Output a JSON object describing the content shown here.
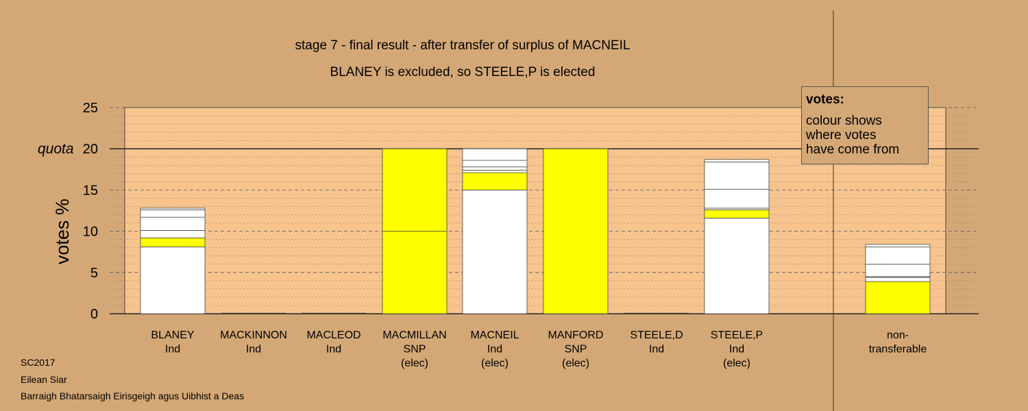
{
  "chart_data": {
    "type": "bar",
    "stacked": true,
    "title": "stage 7 - final result - after transfer of surplus of MACNEIL",
    "subtitle": "BLANEY is excluded, so STEELE,P is elected",
    "ylabel": "votes %",
    "ylim": [
      0,
      25
    ],
    "yticks": [
      0,
      5,
      10,
      15,
      20,
      25
    ],
    "quota": 20,
    "quota_label": "quota",
    "grid": true,
    "legend_placement": "top-right",
    "colors": {
      "background": "#d4a876",
      "plot_area": "#f7c48e",
      "yellow": "#ffff00",
      "white": "#ffffff",
      "outline": "#444444"
    },
    "categories": [
      {
        "lines": [
          "BLANEY",
          "Ind"
        ],
        "segments": [
          {
            "value": 8.1,
            "color": "#ffffff"
          },
          {
            "value": 1.1,
            "color": "#ffff00"
          },
          {
            "value": 0.9,
            "color": "#ffffff"
          },
          {
            "value": 1.6,
            "color": "#ffffff"
          },
          {
            "value": 0.9,
            "color": "#ffffff"
          },
          {
            "value": 0.2,
            "color": "#ffffff"
          }
        ]
      },
      {
        "lines": [
          "MACKINNON",
          "Ind"
        ],
        "segments": []
      },
      {
        "lines": [
          "MACLEOD",
          "Ind"
        ],
        "segments": []
      },
      {
        "lines": [
          "MACMILLAN",
          "SNP",
          "(elec)"
        ],
        "segments": [
          {
            "value": 10.0,
            "color": "#ffff00"
          },
          {
            "value": 10.0,
            "color": "#ffff00"
          }
        ]
      },
      {
        "lines": [
          "MACNEIL",
          "Ind",
          "(elec)"
        ],
        "segments": [
          {
            "value": 15.0,
            "color": "#ffffff"
          },
          {
            "value": 2.1,
            "color": "#ffff00"
          },
          {
            "value": 0.3,
            "color": "#ffffff"
          },
          {
            "value": 0.4,
            "color": "#ffffff"
          },
          {
            "value": 0.8,
            "color": "#ffffff"
          },
          {
            "value": 1.4,
            "color": "#ffffff"
          }
        ]
      },
      {
        "lines": [
          "MANFORD",
          "SNP",
          "(elec)"
        ],
        "segments": [
          {
            "value": 20.0,
            "color": "#ffff00"
          }
        ]
      },
      {
        "lines": [
          "STEELE,D",
          "Ind"
        ],
        "segments": []
      },
      {
        "lines": [
          "STEELE,P",
          "Ind",
          "(elec)"
        ],
        "segments": [
          {
            "value": 11.6,
            "color": "#ffffff"
          },
          {
            "value": 1.0,
            "color": "#ffff00"
          },
          {
            "value": 0.2,
            "color": "#ffffff"
          },
          {
            "value": 2.3,
            "color": "#ffffff"
          },
          {
            "value": 3.3,
            "color": "#ffffff"
          },
          {
            "value": 0.3,
            "color": "#ffffff"
          }
        ]
      },
      {
        "lines": [
          "non-",
          "transferable"
        ],
        "segments": [
          {
            "value": 3.9,
            "color": "#ffff00"
          },
          {
            "value": 0.5,
            "color": "#ffffff"
          },
          {
            "value": 0.1,
            "color": "#ffffff"
          },
          {
            "value": 1.5,
            "color": "#ffffff"
          },
          {
            "value": 2.1,
            "color": "#ffffff"
          },
          {
            "value": 0.3,
            "color": "#ffffff"
          }
        ]
      }
    ]
  },
  "legend": {
    "title": "votes:",
    "body": "colour shows\nwhere votes\nhave come from"
  },
  "footer": {
    "line1": "SC2017",
    "line2": "Eilean Siar",
    "line3": "Barraigh Bhatarsaigh Eirisgeigh agus Uibhist a Deas"
  }
}
